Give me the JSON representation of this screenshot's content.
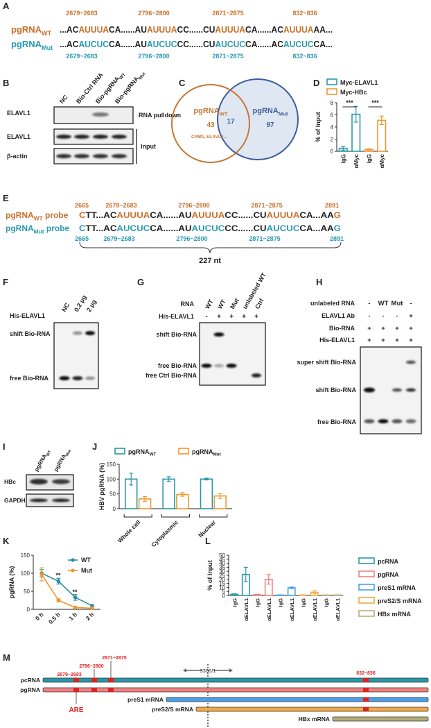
{
  "panel_a": {
    "label": "A",
    "rows": [
      {
        "label": [
          "pgRNA",
          "WT"
        ],
        "color": "#c8702a",
        "positions": [
          "2679~2683",
          "2796~2800",
          "2871~2875",
          "832~836"
        ],
        "sequence": [
          {
            "text": "...AC"
          },
          {
            "text": "AUUUA",
            "color": "#c8702a"
          },
          {
            "text": "CA......AU"
          },
          {
            "text": "AUUUA",
            "color": "#c8702a"
          },
          {
            "text": "CC......CU"
          },
          {
            "text": "AUUUA",
            "color": "#c8702a"
          },
          {
            "text": "CA......AC"
          },
          {
            "text": "AUUUA",
            "color": "#c8702a"
          },
          {
            "text": "AA..."
          }
        ]
      },
      {
        "label": [
          "pgRNA",
          "Mut"
        ],
        "color": "#2a9bb0",
        "positions": [
          "2679~2683",
          "2796~2800",
          "2871~2875",
          "832~836"
        ],
        "sequence": [
          {
            "text": "...AC"
          },
          {
            "text": "AUCUC",
            "color": "#2a9bb0"
          },
          {
            "text": "CA......AU"
          },
          {
            "text": "AUCUC",
            "color": "#2a9bb0"
          },
          {
            "text": "CC......CU"
          },
          {
            "text": "AUCUC",
            "color": "#2a9bb0"
          },
          {
            "text": "CA......AC"
          },
          {
            "text": "AUCUC",
            "color": "#2a9bb0"
          },
          {
            "text": "CA..."
          }
        ]
      }
    ]
  },
  "panel_b": {
    "label": "B",
    "columns": [
      "NC",
      "Bio-Ctrl RNA",
      [
        "Bio-pgRNA",
        "WT"
      ],
      [
        "Bio-pgRNA",
        "Mut"
      ]
    ],
    "rows": [
      "ELAVL1",
      "ELAVL1",
      "β-actin"
    ],
    "groups": [
      "RNA pulldown",
      "Input"
    ]
  },
  "panel_c": {
    "label": "C",
    "left": {
      "label": [
        "pgRNA",
        "WT"
      ],
      "count": 43,
      "note": "CRM1, ELAVL1..."
    },
    "overlap": 17,
    "right": {
      "label": [
        "pgRNA",
        "Mut"
      ],
      "count": 97
    }
  },
  "panel_e": {
    "label": "E",
    "span": "227 nt",
    "rows": [
      {
        "label": [
          "pgRNA",
          "WT",
          " probe"
        ],
        "color": "#c8702a",
        "positions": [
          "2665",
          "2679~2683",
          "2796~2800",
          "2871~2875",
          "2891"
        ],
        "sequence": [
          {
            "text": "C",
            "color": "#c8702a"
          },
          {
            "text": "TT...AC"
          },
          {
            "text": "AUUUA",
            "color": "#c8702a"
          },
          {
            "text": "CA......AU"
          },
          {
            "text": "AUUUA",
            "color": "#c8702a"
          },
          {
            "text": "CC......CU"
          },
          {
            "text": "AUUUA",
            "color": "#c8702a"
          },
          {
            "text": "CA...AA"
          },
          {
            "text": "G",
            "color": "#c8702a"
          }
        ]
      },
      {
        "label": [
          "pgRNA",
          "Mut",
          " probe"
        ],
        "color": "#2a9bb0",
        "positions": [
          "2665",
          "2679~2683",
          "2796~2800",
          "2871~2875",
          "2891"
        ],
        "sequence": [
          {
            "text": "C",
            "color": "#2a9bb0"
          },
          {
            "text": "TT...AC"
          },
          {
            "text": "AUCUC",
            "color": "#2a9bb0"
          },
          {
            "text": "CA......AU"
          },
          {
            "text": "AUCUC",
            "color": "#2a9bb0"
          },
          {
            "text": "CC......CU"
          },
          {
            "text": "AUCUC",
            "color": "#2a9bb0"
          },
          {
            "text": "CA...AA"
          },
          {
            "text": "G",
            "color": "#2a9bb0"
          }
        ]
      }
    ]
  },
  "panel_f": {
    "label": "F",
    "columns": [
      "NC",
      "0.2 μg",
      "2 μg"
    ],
    "row": "His-ELAVL1",
    "bands": [
      "shift Bio-RNA",
      "free Bio-RNA"
    ]
  },
  "panel_g": {
    "label": "G",
    "rows": [
      {
        "name": "RNA",
        "cells": [
          "WT",
          "WT",
          "Mut",
          "unlabeled WT",
          "Ctrl"
        ]
      },
      {
        "name": "His-ELAVL1",
        "cells": [
          "-",
          "+",
          "+",
          "+",
          "+"
        ]
      }
    ],
    "bands": [
      "shift Bio-RNA",
      "free Bio-RNA",
      "free Ctrl Bio-RNA"
    ]
  },
  "panel_h": {
    "label": "H",
    "rows": [
      {
        "name": "unlabeled RNA",
        "cells": [
          "-",
          "WT",
          "Mut",
          "-"
        ]
      },
      {
        "name": "ELAVL1 Ab",
        "cells": [
          "-",
          "-",
          "-",
          "+"
        ]
      },
      {
        "name": "Bio-RNA",
        "cells": [
          "+",
          "+",
          "+",
          "+"
        ]
      },
      {
        "name": "His-ELAVL1",
        "cells": [
          "+",
          "+",
          "+",
          "+"
        ]
      }
    ],
    "bands": [
      "super shift Bio-RNA",
      "shift Bio-RNA",
      "free Bio-RNA"
    ]
  },
  "panel_i": {
    "label": "I",
    "columns": [
      [
        "pgRNA",
        "WT"
      ],
      [
        "pgRNA",
        "Mut"
      ]
    ],
    "rows": [
      "HBc",
      "GAPDH"
    ]
  },
  "panel_m": {
    "label": "M",
    "transcripts": [
      "pcRNA",
      "pgRNA",
      "preS1 mRNA",
      "preS2/S mRNA",
      "HBx mRNA"
    ],
    "sites": [
      "2679~2683",
      "2796~2800",
      "2871~2875",
      "832~836"
    ],
    "junction": "3306/1",
    "element": "ARE"
  },
  "chart_data": [
    {
      "type": "bar",
      "panel_label": "D",
      "y_label": "% of Input",
      "categories": [
        "IgG",
        "αMyc",
        "IgG",
        "αMyc"
      ],
      "series": [
        {
          "name": "Myc-ELAVL1",
          "color": "#2a97a8",
          "values": [
            0.5,
            6.1,
            null,
            null
          ],
          "errors": [
            0.3,
            1.3,
            null,
            null
          ]
        },
        {
          "name": "Myc-HBc",
          "color": "#f0962e",
          "values": [
            null,
            null,
            0.3,
            5.1
          ],
          "errors": [
            null,
            null,
            0.1,
            0.7
          ]
        }
      ],
      "ylim": [
        0,
        8
      ],
      "yticks": [
        0,
        2,
        4,
        6,
        8
      ],
      "annotations": [
        "***",
        "***"
      ]
    },
    {
      "type": "bar",
      "panel_label": "J",
      "y_label": "HBV pgRNA (%)",
      "categories": [
        "Whole cell",
        "Cytoplasmic",
        "Nuclear"
      ],
      "series": [
        {
          "name": [
            "pgRNA",
            "WT"
          ],
          "color": "#2a97a8",
          "values": [
            100,
            100,
            100
          ],
          "errors": [
            20,
            8,
            3
          ]
        },
        {
          "name": [
            "pgRNA",
            "Mut"
          ],
          "color": "#f0962e",
          "values": [
            33,
            48,
            43
          ],
          "errors": [
            8,
            6,
            8
          ]
        }
      ],
      "ylim": [
        0,
        150
      ],
      "yticks": [
        0,
        50,
        100,
        150
      ]
    },
    {
      "type": "line",
      "panel_label": "K",
      "y_label": "pgRNA (%)",
      "categories": [
        "0 h",
        "0.5 h",
        "1 h",
        "2 h"
      ],
      "series": [
        {
          "name": "WT",
          "color": "#2b8c9e",
          "values": [
            100,
            78,
            33,
            10
          ],
          "errors": [
            10,
            8,
            8,
            1
          ]
        },
        {
          "name": "Mut",
          "color": "#f0962e",
          "values": [
            97,
            25,
            5,
            3
          ],
          "errors": [
            18,
            4,
            2,
            1
          ]
        }
      ],
      "ylim": [
        0,
        150
      ],
      "yticks": [
        0,
        50,
        100,
        150
      ],
      "annotations": [
        "**",
        "**"
      ]
    },
    {
      "type": "bar",
      "panel_label": "L",
      "y_label": "% of Input",
      "categories": [
        "IgG",
        "αELAVL1",
        "IgG",
        "αELAVL1",
        "IgG",
        "αELAVL1",
        "IgG",
        "αELAVL1",
        "IgG",
        "αELAVL1"
      ],
      "series": [
        {
          "name": "pcRNA",
          "color": "#2a97a8",
          "values": [
            1.5,
            26,
            null,
            null,
            null,
            null,
            null,
            null,
            null,
            null
          ],
          "errors": [
            0.5,
            9,
            null,
            null,
            null,
            null,
            null,
            null,
            null,
            null
          ]
        },
        {
          "name": "pgRNA",
          "color": "#f08080",
          "values": [
            null,
            null,
            1,
            20,
            null,
            null,
            null,
            null,
            null,
            null
          ],
          "errors": [
            null,
            null,
            0.5,
            6,
            null,
            null,
            null,
            null,
            null,
            null
          ]
        },
        {
          "name": "preS1 mRNA",
          "color": "#4a9ee6",
          "values": [
            null,
            null,
            null,
            null,
            0.5,
            9.5,
            null,
            null,
            null,
            null
          ],
          "errors": [
            null,
            null,
            null,
            null,
            0.2,
            1,
            null,
            null,
            null,
            null
          ]
        },
        {
          "name": "preS2/S mRNA",
          "color": "#f2a844",
          "values": [
            null,
            null,
            null,
            null,
            null,
            null,
            0.5,
            4,
            null,
            null
          ],
          "errors": [
            null,
            null,
            null,
            null,
            null,
            null,
            0.2,
            2,
            null,
            null
          ]
        },
        {
          "name": "HBx mRNA",
          "color": "#b7ad7a",
          "values": [
            null,
            null,
            null,
            null,
            null,
            null,
            null,
            null,
            0.5,
            0.5
          ],
          "errors": [
            null,
            null,
            null,
            null,
            null,
            null,
            null,
            null,
            0.2,
            0.2
          ]
        }
      ],
      "ylim": [
        0,
        50
      ],
      "yticks": [
        0,
        5,
        10,
        15,
        20,
        25,
        30,
        35,
        40,
        45,
        50
      ]
    }
  ]
}
